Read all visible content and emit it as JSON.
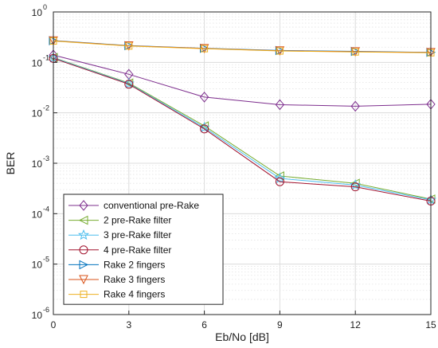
{
  "chart_data": {
    "type": "line",
    "xlabel": "Eb/No [dB]",
    "ylabel": "BER",
    "x": [
      0,
      3,
      6,
      9,
      12,
      15
    ],
    "xlim": [
      0,
      15
    ],
    "xticks": [
      0,
      3,
      6,
      9,
      12,
      15
    ],
    "ylim": [
      1e-06,
      1
    ],
    "yscale": "log",
    "yticks": [
      {
        "base": "10",
        "exp": "-6"
      },
      {
        "base": "10",
        "exp": "-5"
      },
      {
        "base": "10",
        "exp": "-4"
      },
      {
        "base": "10",
        "exp": "-3"
      },
      {
        "base": "10",
        "exp": "-2"
      },
      {
        "base": "10",
        "exp": "-1"
      },
      {
        "base": "10",
        "exp": "0"
      }
    ],
    "grid": true,
    "legend_position": "bottom-left",
    "series": [
      {
        "name": "conventional pre-Rake",
        "color": "#7e2f8e",
        "marker": "diamond",
        "values": [
          0.14,
          0.058,
          0.0205,
          0.0145,
          0.0135,
          0.0148
        ]
      },
      {
        "name": "2 pre-Rake filter",
        "color": "#77ac30",
        "marker": "triangle-left",
        "values": [
          0.125,
          0.039,
          0.0055,
          0.00056,
          0.0004,
          0.000195
        ]
      },
      {
        "name": "3 pre-Rake filter",
        "color": "#4dbeee",
        "marker": "star",
        "values": [
          0.123,
          0.038,
          0.0051,
          0.0005,
          0.00037,
          0.000188
        ]
      },
      {
        "name": "4 pre-Rake filter",
        "color": "#a2142f",
        "marker": "circle",
        "values": [
          0.12,
          0.037,
          0.0048,
          0.00043,
          0.00034,
          0.000178
        ]
      },
      {
        "name": "Rake 2 fingers",
        "color": "#0072bd",
        "marker": "triangle-right",
        "values": [
          0.27,
          0.215,
          0.19,
          0.172,
          0.165,
          0.158
        ]
      },
      {
        "name": "Rake 3 fingers",
        "color": "#d95319",
        "marker": "triangle-down",
        "values": [
          0.268,
          0.213,
          0.189,
          0.17,
          0.163,
          0.157
        ]
      },
      {
        "name": "Rake 4 fingers",
        "color": "#edb120",
        "marker": "square",
        "values": [
          0.265,
          0.211,
          0.187,
          0.168,
          0.161,
          0.155
        ]
      }
    ]
  }
}
